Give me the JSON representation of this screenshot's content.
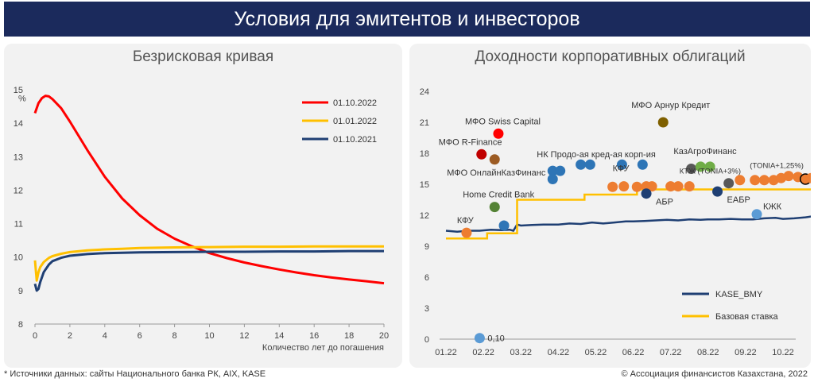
{
  "header": {
    "title": "Условия для эмитентов и инвесторов"
  },
  "footer": {
    "source": "* Источники данных: сайты Национального банка РК, AIX, KASE",
    "copyright": "© Ассоциация финансистов Казахстана, 2022"
  },
  "colors": {
    "header_bg": "#1b2a5c",
    "red": "#ff0000",
    "yellow": "#ffc000",
    "navy": "#1f3f73",
    "orange": "#ed7d31",
    "blue_dot": "#2e75b6",
    "light_blue": "#5b9bd5",
    "green": "#548235",
    "light_green": "#70ad47",
    "dark_red": "#c00000",
    "brown": "#9c5b23",
    "olive": "#7f6000",
    "gray": "#595959"
  },
  "chart_data": [
    {
      "type": "line",
      "title": "Безрисковая кривая",
      "ylabel": "%",
      "xlabel": "Количество лет до погашения",
      "xlim": [
        0,
        20
      ],
      "ylim": [
        8,
        15
      ],
      "xticks": [
        "0",
        "2",
        "4",
        "6",
        "8",
        "10",
        "12",
        "14",
        "16",
        "18",
        "20"
      ],
      "yticks": [
        "8",
        "9",
        "10",
        "11",
        "12",
        "13",
        "14",
        "15"
      ],
      "grid": false,
      "legend": "top-right",
      "series": [
        {
          "name": "01.10.2022",
          "color": "red",
          "x": [
            0,
            0.2,
            0.4,
            0.6,
            0.8,
            1,
            1.5,
            2,
            3,
            4,
            5,
            6,
            7,
            8,
            9,
            10,
            11,
            12,
            13,
            14,
            15,
            16,
            17,
            18,
            19,
            20
          ],
          "y": [
            14.3,
            14.6,
            14.75,
            14.82,
            14.8,
            14.72,
            14.45,
            14.05,
            13.2,
            12.4,
            11.75,
            11.25,
            10.85,
            10.55,
            10.32,
            10.12,
            9.97,
            9.84,
            9.73,
            9.63,
            9.54,
            9.46,
            9.39,
            9.33,
            9.28,
            9.22
          ]
        },
        {
          "name": "01.01.2022",
          "color": "yellow",
          "x": [
            0,
            0.1,
            0.2,
            0.3,
            0.5,
            0.8,
            1,
            1.5,
            2,
            3,
            4,
            5,
            6,
            8,
            10,
            12,
            14,
            16,
            18,
            20
          ],
          "y": [
            9.9,
            9.3,
            9.55,
            9.7,
            9.85,
            9.98,
            10.03,
            10.1,
            10.15,
            10.2,
            10.23,
            10.25,
            10.27,
            10.29,
            10.3,
            10.31,
            10.31,
            10.32,
            10.32,
            10.32
          ]
        },
        {
          "name": "01.10.2021",
          "color": "navy",
          "x": [
            0,
            0.1,
            0.2,
            0.3,
            0.5,
            0.8,
            1,
            1.5,
            2,
            3,
            4,
            5,
            6,
            8,
            10,
            12,
            14,
            16,
            18,
            20
          ],
          "y": [
            9.2,
            9.0,
            9.05,
            9.25,
            9.55,
            9.78,
            9.88,
            9.98,
            10.04,
            10.09,
            10.12,
            10.13,
            10.14,
            10.15,
            10.16,
            10.16,
            10.17,
            10.17,
            10.18,
            10.18
          ]
        }
      ]
    },
    {
      "type": "scatter",
      "title": "Доходности корпоративных облигаций",
      "x_categories": [
        "01.22",
        "02.22",
        "03.22",
        "04.22",
        "05.22",
        "06.22",
        "07.22",
        "08.22",
        "09.22",
        "10.22"
      ],
      "ylim": [
        0,
        24
      ],
      "yticks": [
        "0",
        "3",
        "6",
        "9",
        "12",
        "15",
        "18",
        "21",
        "24"
      ],
      "grid": false,
      "legend": "bottom-right",
      "series": [
        {
          "name": "KASE_BMY",
          "color": "navy",
          "x": [
            0,
            0.3,
            0.6,
            0.9,
            1.2,
            1.5,
            1.7,
            1.8,
            1.9,
            2.0,
            2.3,
            2.6,
            3.0,
            3.3,
            3.6,
            3.9,
            4.2,
            4.5,
            4.8,
            5.0,
            5.3,
            5.6,
            5.9,
            6.2,
            6.5,
            6.8,
            7.0,
            7.3,
            7.6,
            7.9,
            8.2,
            8.5,
            8.8,
            9.0,
            9.3,
            9.6,
            9.8,
            9.9
          ],
          "y": [
            10.5,
            10.4,
            10.5,
            10.5,
            10.6,
            10.55,
            10.6,
            10.5,
            11.1,
            11.0,
            11.05,
            11.1,
            11.1,
            11.2,
            11.15,
            11.3,
            11.2,
            11.3,
            11.4,
            11.4,
            11.45,
            11.5,
            11.55,
            11.5,
            11.6,
            11.55,
            11.6,
            11.6,
            11.65,
            11.6,
            11.6,
            11.7,
            11.75,
            11.65,
            11.7,
            11.8,
            11.9,
            12.05
          ]
        },
        {
          "name": "Базовая ставка",
          "color": "yellow",
          "step": true,
          "x": [
            0,
            0.45,
            1.1,
            1.6,
            1.72,
            1.9,
            3.6,
            3.7,
            5.0,
            5.1,
            7.7,
            7.8,
            9.9
          ],
          "y": [
            9.75,
            9.75,
            10.25,
            10.25,
            10.25,
            13.5,
            13.5,
            14.0,
            14.0,
            14.5,
            14.5,
            14.5,
            14.5
          ]
        }
      ],
      "points": [
        {
          "x": 0.55,
          "y": 10.3,
          "color": "orange",
          "label": "КФУ"
        },
        {
          "x": 0.9,
          "y": 0.1,
          "color": "light_blue",
          "label": "0,10"
        },
        {
          "x": 1.4,
          "y": 19.9,
          "color": "red",
          "label": "МФО Swiss Capital"
        },
        {
          "x": 0.95,
          "y": 17.9,
          "color": "dark_red",
          "label": "МФО R-Finance"
        },
        {
          "x": 1.3,
          "y": 17.4,
          "color": "brown",
          "label": "МФО ОнлайнКазФинанс"
        },
        {
          "x": 1.3,
          "y": 12.8,
          "color": "green",
          "label": "Home Credit Bank"
        },
        {
          "x": 1.55,
          "y": 11.0,
          "color": "blue_dot",
          "label": ""
        },
        {
          "x": 2.85,
          "y": 16.3,
          "color": "blue_dot",
          "label": "НК Продо-ая кред-ая корп-ия"
        },
        {
          "x": 2.85,
          "y": 15.5,
          "color": "blue_dot",
          "label": ""
        },
        {
          "x": 3.05,
          "y": 16.3,
          "color": "blue_dot",
          "label": ""
        },
        {
          "x": 3.6,
          "y": 16.9,
          "color": "blue_dot",
          "label": ""
        },
        {
          "x": 3.85,
          "y": 16.9,
          "color": "blue_dot",
          "label": ""
        },
        {
          "x": 4.7,
          "y": 16.9,
          "color": "blue_dot",
          "label": ""
        },
        {
          "x": 5.25,
          "y": 16.9,
          "color": "blue_dot",
          "label": ""
        },
        {
          "x": 4.45,
          "y": 14.75,
          "color": "orange",
          "label": "КФУ"
        },
        {
          "x": 4.75,
          "y": 14.8,
          "color": "orange",
          "label": ""
        },
        {
          "x": 5.1,
          "y": 14.75,
          "color": "orange",
          "label": ""
        },
        {
          "x": 5.35,
          "y": 14.8,
          "color": "orange",
          "label": ""
        },
        {
          "x": 5.5,
          "y": 14.8,
          "color": "orange",
          "label": ""
        },
        {
          "x": 6.0,
          "y": 14.8,
          "color": "orange",
          "label": ""
        },
        {
          "x": 6.2,
          "y": 14.8,
          "color": "orange",
          "label": ""
        },
        {
          "x": 6.5,
          "y": 14.8,
          "color": "orange",
          "label": ""
        },
        {
          "x": 5.35,
          "y": 14.1,
          "color": "navy",
          "label": "АБР"
        },
        {
          "x": 5.8,
          "y": 21.0,
          "color": "olive",
          "label": "МФО Арнур Кредит"
        },
        {
          "x": 6.55,
          "y": 16.5,
          "color": "gray",
          "label": ""
        },
        {
          "x": 6.8,
          "y": 16.7,
          "color": "light_green",
          "label": "КазАгроФинанс"
        },
        {
          "x": 7.05,
          "y": 16.7,
          "color": "light_green",
          "label": ""
        },
        {
          "x": 7.25,
          "y": 14.3,
          "color": "navy",
          "label": "ЕАБР"
        },
        {
          "x": 7.55,
          "y": 15.1,
          "color": "gray",
          "label": "КТЖ (TONIA+3%)"
        },
        {
          "x": 7.85,
          "y": 15.4,
          "color": "orange",
          "label": ""
        },
        {
          "x": 8.3,
          "y": 12.1,
          "color": "light_blue",
          "label": "КЖК"
        },
        {
          "x": 8.25,
          "y": 15.4,
          "color": "orange",
          "label": ""
        },
        {
          "x": 8.5,
          "y": 15.4,
          "color": "orange",
          "label": ""
        },
        {
          "x": 8.75,
          "y": 15.4,
          "color": "orange",
          "label": ""
        },
        {
          "x": 8.95,
          "y": 15.6,
          "color": "orange",
          "label": ""
        },
        {
          "x": 9.15,
          "y": 15.8,
          "color": "orange",
          "label": ""
        },
        {
          "x": 9.4,
          "y": 15.7,
          "color": "orange",
          "label": ""
        },
        {
          "x": 9.6,
          "y": 15.5,
          "color": "orange",
          "label": "(TONIA+1,25%)"
        },
        {
          "x": 9.75,
          "y": 15.6,
          "color": "orange",
          "label": ""
        }
      ]
    }
  ]
}
